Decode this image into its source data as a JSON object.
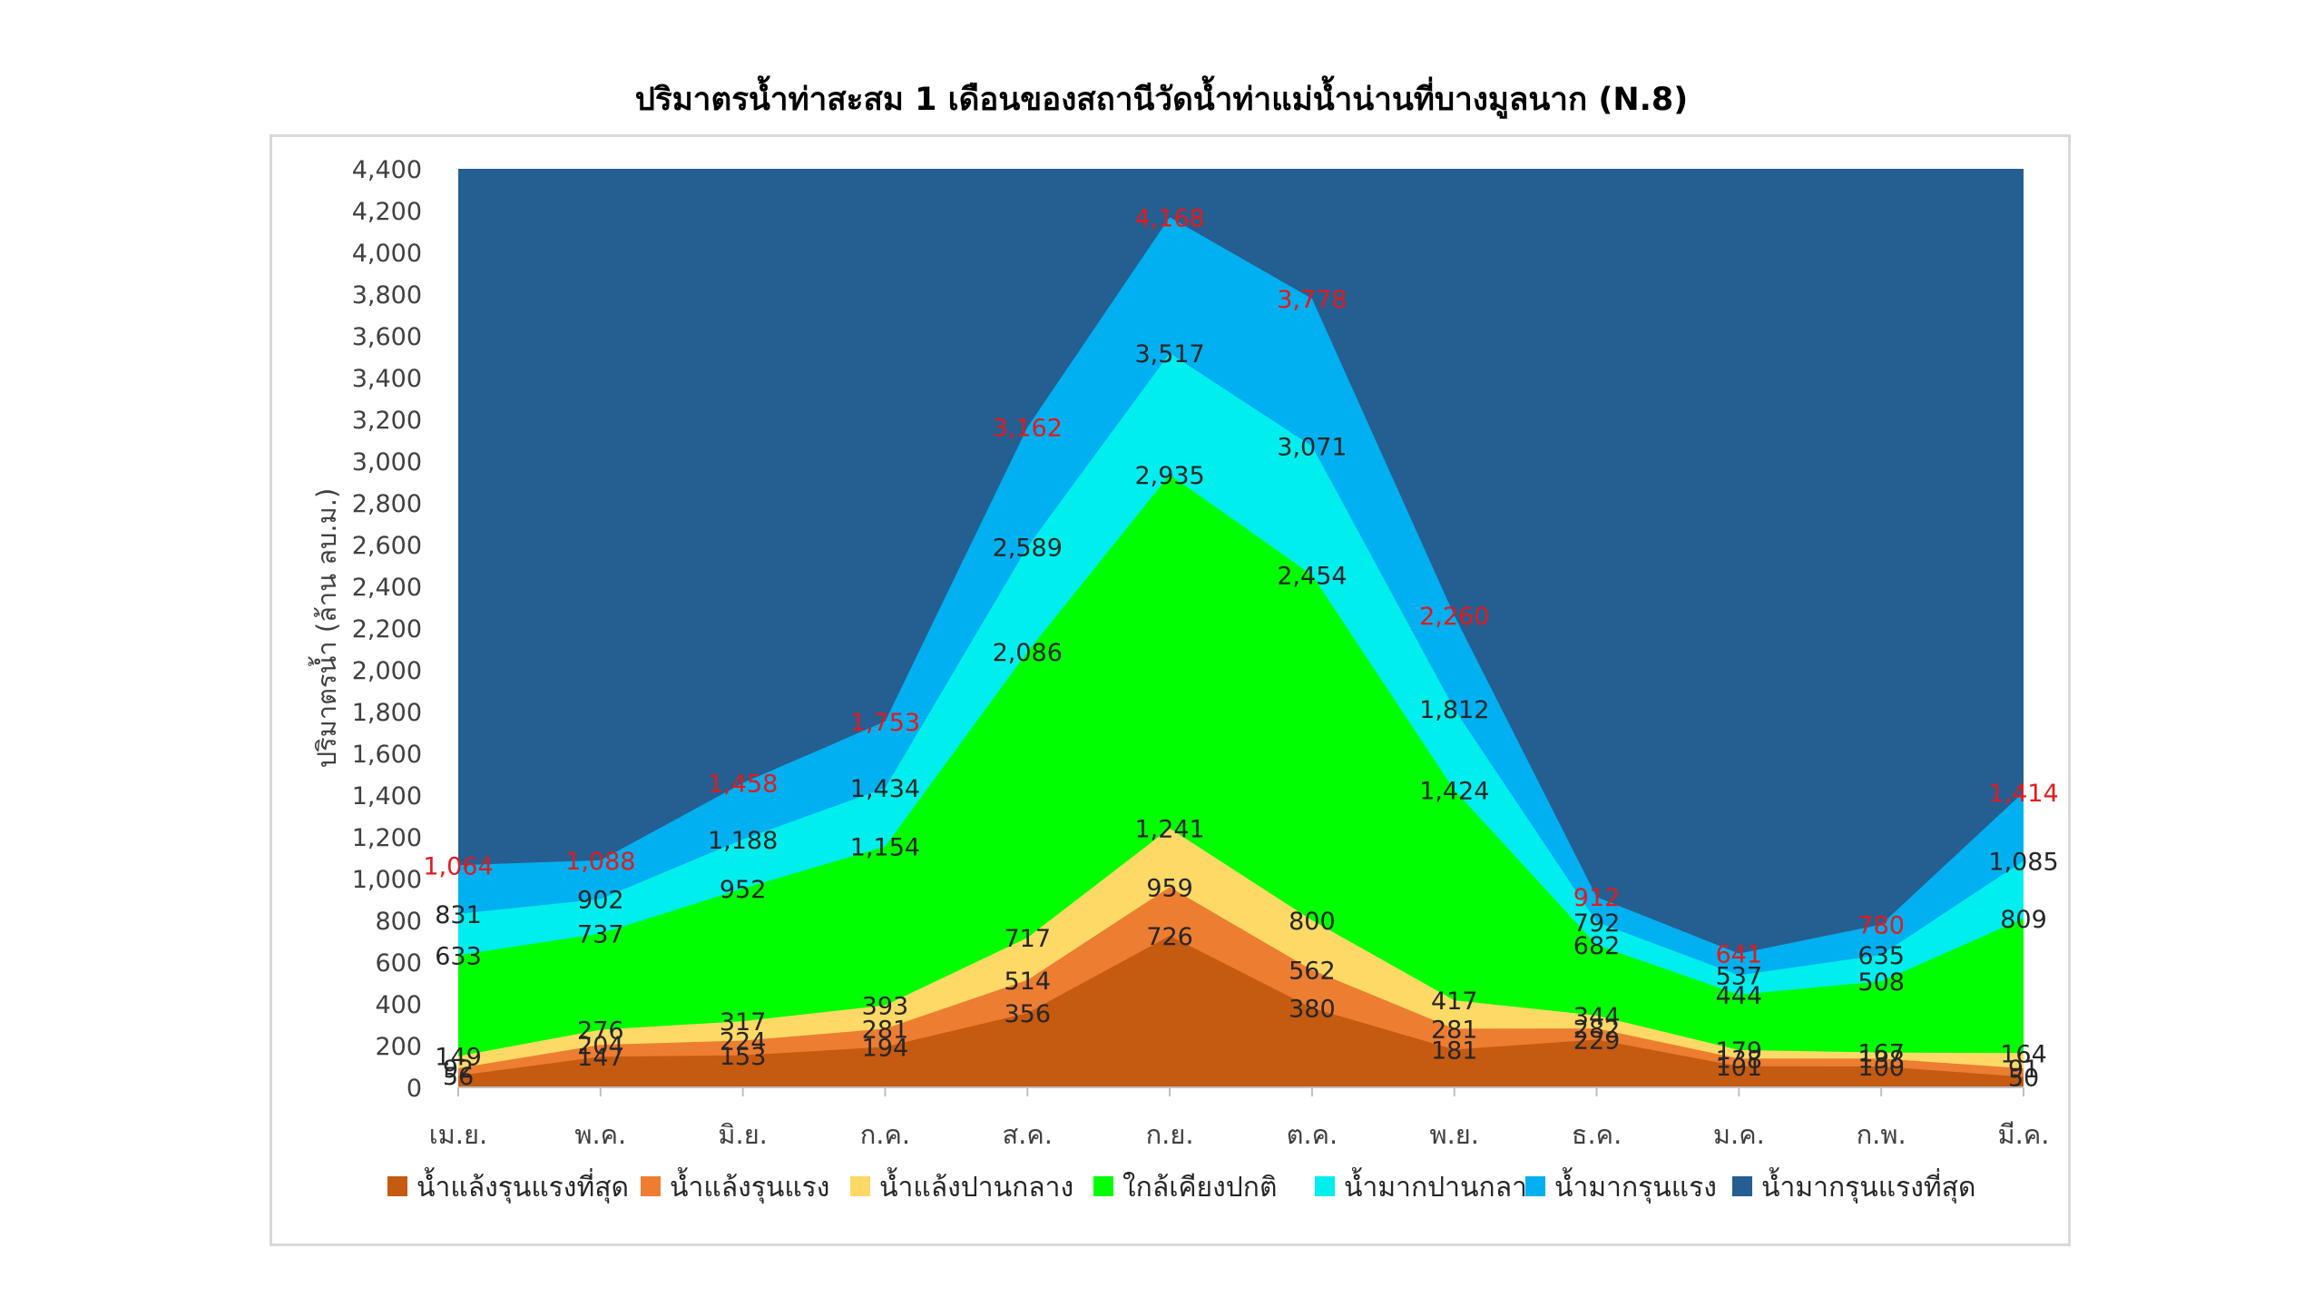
{
  "chart_data": {
    "type": "area",
    "title": "ปริมาตรน้ำท่าสะสม 1 เดือนของสถานีวัดน้ำท่าแม่น้ำน่านที่บางมูลนาก (N.8)",
    "xlabel": "",
    "ylabel": "ปริมาตรน้ำ (ล้าน ลบ.ม.)",
    "ylim": [
      0,
      4400
    ],
    "ytick_step": 200,
    "ytick_labels": [
      "0",
      "200",
      "400",
      "600",
      "800",
      "1,000",
      "1,200",
      "1,400",
      "1,600",
      "1,800",
      "2,000",
      "2,200",
      "2,400",
      "2,600",
      "2,800",
      "3,000",
      "3,200",
      "3,400",
      "3,600",
      "3,800",
      "4,000",
      "4,200",
      "4,400"
    ],
    "categories": [
      "เม.ย.",
      "พ.ค.",
      "มิ.ย.",
      "ก.ค.",
      "ส.ค.",
      "ก.ย.",
      "ต.ค.",
      "พ.ย.",
      "ธ.ค.",
      "ม.ค.",
      "ก.พ.",
      "มี.ค."
    ],
    "background_band": {
      "name": "น้ำมากรุนแรงที่สุด",
      "color": "#255e91"
    },
    "legend_position": "bottom",
    "grid": false,
    "series": [
      {
        "name": "น้ำแล้งรุนแรงที่สุด",
        "color": "#c55a11",
        "values": [
          56,
          147,
          153,
          194,
          356,
          726,
          380,
          181,
          229,
          101,
          100,
          50
        ],
        "labels": [
          "56",
          "147",
          "153",
          "194",
          "356",
          "726",
          "380",
          "181",
          "229",
          "101",
          "100",
          "50"
        ]
      },
      {
        "name": "น้ำแล้งรุนแรง",
        "color": "#ed7d31",
        "values": [
          92,
          204,
          224,
          281,
          514,
          959,
          562,
          281,
          282,
          138,
          138,
          91
        ],
        "labels": [
          "92",
          "204",
          "224",
          "281",
          "514",
          "959",
          "562",
          "281",
          "282",
          "138",
          "138",
          "91"
        ]
      },
      {
        "name": "น้ำแล้งปานกลาง",
        "color": "#ffd966",
        "values": [
          149,
          276,
          317,
          393,
          717,
          1241,
          800,
          417,
          344,
          179,
          167,
          164
        ],
        "labels": [
          "149",
          "276",
          "317",
          "393",
          "717",
          "1,241",
          "800",
          "417",
          "344",
          "179",
          "167",
          "164"
        ]
      },
      {
        "name": "ใกล้เคียงปกติ",
        "color": "#00ff00",
        "values": [
          633,
          737,
          952,
          1154,
          2086,
          2935,
          2454,
          1424,
          682,
          444,
          508,
          809
        ],
        "labels": [
          "633",
          "737",
          "952",
          "1,154",
          "2,086",
          "2,935",
          "2,454",
          "1,424",
          "682",
          "444",
          "508",
          "809"
        ]
      },
      {
        "name": "น้ำมากปานกลาง",
        "color": "#00eeee",
        "values": [
          831,
          902,
          1188,
          1434,
          2589,
          3517,
          3071,
          1812,
          792,
          537,
          635,
          1085
        ],
        "labels": [
          "831",
          "902",
          "1,188",
          "1,434",
          "2,589",
          "3,517",
          "3,071",
          "1,812",
          "792",
          "537",
          "635",
          "1,085"
        ]
      },
      {
        "name": "น้ำมากรุนแรง",
        "color": "#00b0f0",
        "values": [
          1064,
          1088,
          1458,
          1753,
          3162,
          4168,
          3778,
          2260,
          912,
          641,
          780,
          1414
        ],
        "labels": [
          "1,064",
          "1,088",
          "1,458",
          "1,753",
          "3,162",
          "4,168",
          "3,778",
          "2,260",
          "912",
          "641",
          "780",
          "1,414"
        ]
      }
    ]
  }
}
